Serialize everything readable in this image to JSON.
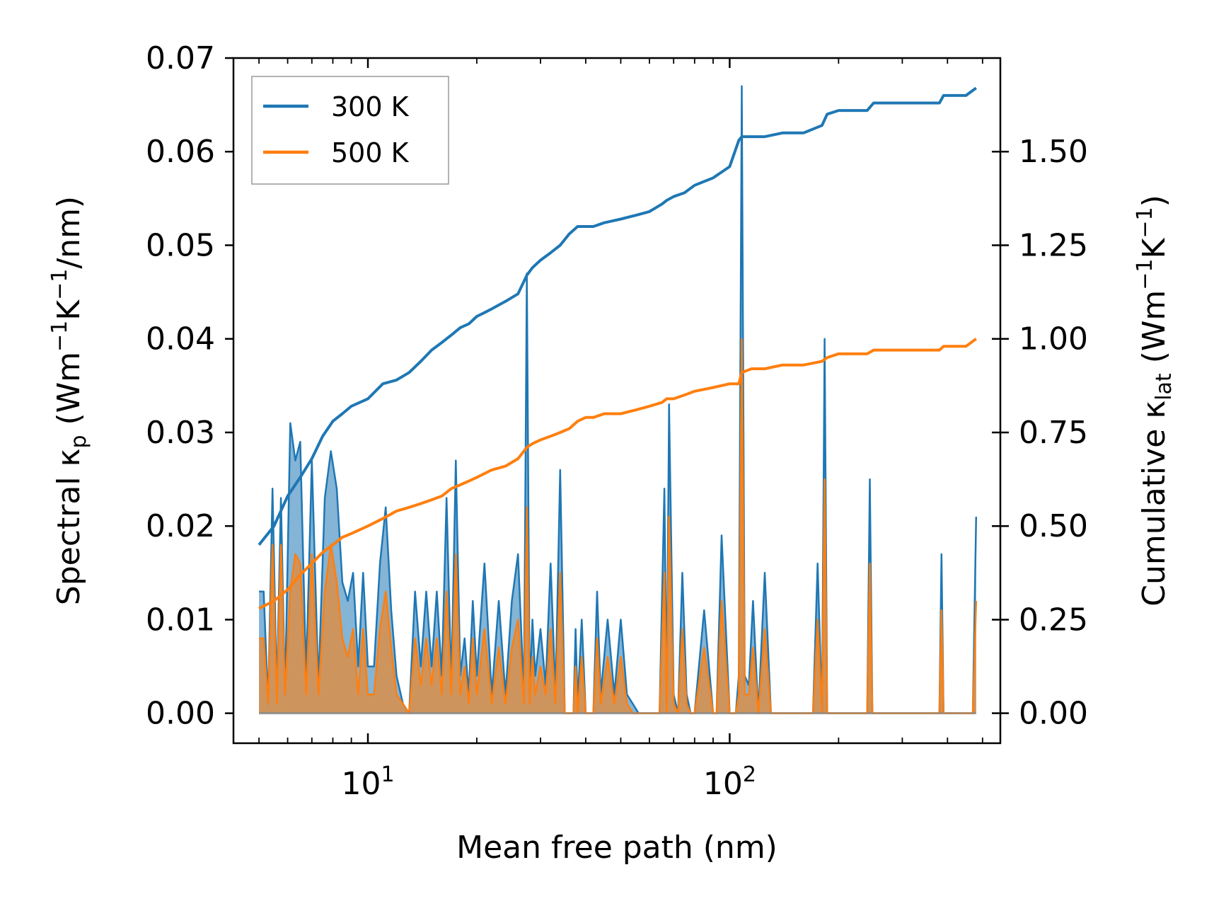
{
  "chart_data": {
    "type": "line",
    "xscale": "log",
    "xlabel": "Mean free path (nm)",
    "xlim": [
      4.25,
      560
    ],
    "x_ticks": [
      {
        "value": 10,
        "base": "10",
        "exp": "1"
      },
      {
        "value": 100,
        "base": "10",
        "exp": "2"
      }
    ],
    "left_axis": {
      "label": {
        "pre": "Spectral κ",
        "sub": "p",
        "mid1": " (Wm",
        "sup1": "−1",
        "mid2": "K",
        "sup2": "−1",
        "post": "/nm)"
      },
      "ylim": [
        -0.0032,
        0.07
      ],
      "ticks": [
        0.0,
        0.01,
        0.02,
        0.03,
        0.04,
        0.05,
        0.06,
        0.07
      ],
      "tick_labels": [
        "0.00",
        "0.01",
        "0.02",
        "0.03",
        "0.04",
        "0.05",
        "0.06",
        "0.07"
      ]
    },
    "right_axis": {
      "label": {
        "pre": "Cumulative κ",
        "sub": "lat",
        "mid1": " (Wm",
        "sup1": "−1",
        "mid2": "K",
        "sup2": "−1",
        "post": ")"
      },
      "ylim": [
        -0.08,
        1.75
      ],
      "ticks": [
        0.0,
        0.25,
        0.5,
        0.75,
        1.0,
        1.25,
        1.5
      ],
      "tick_labels": [
        "0.00",
        "0.25",
        "0.50",
        "0.75",
        "1.00",
        "1.25",
        "1.50"
      ]
    },
    "legend": {
      "position": "top-left",
      "entries": [
        {
          "label": "300 K",
          "color": "#1f77b4"
        },
        {
          "label": "500 K",
          "color": "#ff7f0e"
        }
      ]
    },
    "series": [
      {
        "name": "300 K spectral",
        "axis": "left",
        "kind": "filled-spikes",
        "color": "#1f77b4",
        "x": [
          5.0,
          5.15,
          5.3,
          5.45,
          5.6,
          5.75,
          5.9,
          6.1,
          6.3,
          6.5,
          6.75,
          7.0,
          7.3,
          7.6,
          7.9,
          8.2,
          8.5,
          8.8,
          9.1,
          9.4,
          9.7,
          10.0,
          10.4,
          10.8,
          11.2,
          11.6,
          12.0,
          12.5,
          13.0,
          13.5,
          14.0,
          14.5,
          15.0,
          15.5,
          16.0,
          16.5,
          17.0,
          17.5,
          18.0,
          18.5,
          19.0,
          19.5,
          20.0,
          21.0,
          22.0,
          23.0,
          24.0,
          25.0,
          26.0,
          27.0,
          27.5,
          28.0,
          28.5,
          29.0,
          30.0,
          31.0,
          32.0,
          33.0,
          34.0,
          35.0,
          36.0,
          37.0,
          37.5,
          38.0,
          39.0,
          40.0,
          41.0,
          42.0,
          43.0,
          44.0,
          46.0,
          48.0,
          50.0,
          52.0,
          54.0,
          56.0,
          58.0,
          60.0,
          62.0,
          64.0,
          66.0,
          67.0,
          68.0,
          70.0,
          72.0,
          74.0,
          76.0,
          78.0,
          80.0,
          85.0,
          90.0,
          92.0,
          95.0,
          100.0,
          104.0,
          106.0,
          108.0,
          110.0,
          113.0,
          116.0,
          120.0,
          125.0,
          130.0,
          135.0,
          140.0,
          150.0,
          160.0,
          170.0,
          175.0,
          180.0,
          183.0,
          186.0,
          190.0,
          200.0,
          210.0,
          220.0,
          230.0,
          240.0,
          244.0,
          248.0,
          260.0,
          280.0,
          300.0,
          330.0,
          360.0,
          380.0,
          385.0,
          390.0,
          420.0,
          450.0,
          470.0,
          480.0
        ],
        "y": [
          0.013,
          0.013,
          0.001,
          0.024,
          0.002,
          0.023,
          0.002,
          0.031,
          0.027,
          0.029,
          0.004,
          0.027,
          0.003,
          0.023,
          0.028,
          0.024,
          0.014,
          0.012,
          0.015,
          0.005,
          0.015,
          0.005,
          0.005,
          0.016,
          0.022,
          0.011,
          0.004,
          0.001,
          0.0,
          0.013,
          0.005,
          0.013,
          0.005,
          0.013,
          0.004,
          0.023,
          0.003,
          0.027,
          0.004,
          0.008,
          0.002,
          0.012,
          0.004,
          0.016,
          0.002,
          0.012,
          0.002,
          0.012,
          0.017,
          0.002,
          0.047,
          0.002,
          0.01,
          0.004,
          0.009,
          0.003,
          0.016,
          0.002,
          0.026,
          0.0,
          0.0,
          0.0,
          0.009,
          0.001,
          0.01,
          0.0,
          0.0,
          0.0,
          0.013,
          0.002,
          0.01,
          0.002,
          0.01,
          0.002,
          0.001,
          0.0,
          0.0,
          0.0,
          0.0,
          0.0,
          0.024,
          0.001,
          0.033,
          0.002,
          0.0,
          0.015,
          0.002,
          0.0,
          0.0,
          0.011,
          0.0,
          0.0,
          0.019,
          0.0,
          0.0,
          0.004,
          0.067,
          0.004,
          0.003,
          0.012,
          0.0,
          0.015,
          0.0,
          0.0,
          0.0,
          0.0,
          0.0,
          0.0,
          0.016,
          0.0,
          0.04,
          0.0,
          0.0,
          0.0,
          0.0,
          0.0,
          0.0,
          0.0,
          0.025,
          0.0,
          0.0,
          0.0,
          0.0,
          0.0,
          0.0,
          0.0,
          0.017,
          0.0,
          0.0,
          0.0,
          0.0,
          0.021
        ]
      },
      {
        "name": "500 K spectral",
        "axis": "left",
        "kind": "filled-spikes",
        "color": "#ff7f0e",
        "x": [
          5.0,
          5.15,
          5.3,
          5.45,
          5.6,
          5.75,
          5.9,
          6.1,
          6.3,
          6.5,
          6.75,
          7.0,
          7.3,
          7.6,
          7.9,
          8.2,
          8.5,
          8.8,
          9.1,
          9.4,
          9.7,
          10.0,
          10.4,
          10.8,
          11.2,
          11.6,
          12.0,
          12.5,
          13.0,
          13.5,
          14.0,
          14.5,
          15.0,
          15.5,
          16.0,
          16.5,
          17.0,
          17.5,
          18.0,
          18.5,
          19.0,
          19.5,
          20.0,
          21.0,
          22.0,
          23.0,
          24.0,
          25.0,
          26.0,
          27.0,
          27.5,
          28.0,
          28.5,
          29.0,
          30.0,
          31.0,
          32.0,
          33.0,
          34.0,
          35.0,
          36.0,
          37.0,
          37.5,
          38.0,
          39.0,
          40.0,
          41.0,
          42.0,
          43.0,
          44.0,
          46.0,
          48.0,
          50.0,
          52.0,
          54.0,
          56.0,
          58.0,
          60.0,
          62.0,
          64.0,
          66.0,
          67.0,
          68.0,
          70.0,
          72.0,
          74.0,
          76.0,
          78.0,
          80.0,
          85.0,
          90.0,
          92.0,
          95.0,
          100.0,
          104.0,
          106.0,
          108.0,
          110.0,
          113.0,
          116.0,
          120.0,
          125.0,
          130.0,
          135.0,
          140.0,
          150.0,
          160.0,
          170.0,
          175.0,
          180.0,
          183.0,
          186.0,
          190.0,
          200.0,
          210.0,
          220.0,
          230.0,
          240.0,
          244.0,
          248.0,
          260.0,
          280.0,
          300.0,
          330.0,
          360.0,
          380.0,
          385.0,
          390.0,
          420.0,
          450.0,
          470.0,
          480.0
        ],
        "y": [
          0.008,
          0.008,
          0.001,
          0.018,
          0.001,
          0.018,
          0.002,
          0.013,
          0.017,
          0.016,
          0.002,
          0.017,
          0.002,
          0.013,
          0.018,
          0.014,
          0.008,
          0.006,
          0.009,
          0.002,
          0.009,
          0.002,
          0.002,
          0.009,
          0.013,
          0.007,
          0.002,
          0.001,
          0.0,
          0.008,
          0.003,
          0.008,
          0.003,
          0.008,
          0.002,
          0.013,
          0.002,
          0.017,
          0.002,
          0.005,
          0.001,
          0.008,
          0.002,
          0.009,
          0.001,
          0.007,
          0.001,
          0.007,
          0.01,
          0.001,
          0.022,
          0.001,
          0.006,
          0.002,
          0.005,
          0.002,
          0.009,
          0.001,
          0.015,
          0.0,
          0.0,
          0.0,
          0.005,
          0.0,
          0.006,
          0.0,
          0.0,
          0.0,
          0.008,
          0.001,
          0.006,
          0.001,
          0.006,
          0.001,
          0.0,
          0.0,
          0.0,
          0.0,
          0.0,
          0.0,
          0.015,
          0.0,
          0.021,
          0.001,
          0.0,
          0.009,
          0.001,
          0.0,
          0.0,
          0.007,
          0.0,
          0.0,
          0.012,
          0.0,
          0.0,
          0.002,
          0.04,
          0.002,
          0.002,
          0.007,
          0.0,
          0.009,
          0.0,
          0.0,
          0.0,
          0.0,
          0.0,
          0.0,
          0.01,
          0.0,
          0.025,
          0.0,
          0.0,
          0.0,
          0.0,
          0.0,
          0.0,
          0.0,
          0.016,
          0.0,
          0.0,
          0.0,
          0.0,
          0.0,
          0.0,
          0.0,
          0.011,
          0.0,
          0.0,
          0.0,
          0.0,
          0.012
        ]
      },
      {
        "name": "300 K",
        "axis": "right",
        "kind": "line",
        "color": "#1f77b4",
        "x": [
          5.0,
          5.5,
          6.0,
          6.5,
          7.0,
          7.5,
          8.0,
          8.5,
          9.0,
          10.0,
          11.0,
          12.0,
          13.0,
          14.0,
          15.0,
          16.0,
          17.0,
          18.0,
          19.0,
          20.0,
          21.0,
          22.0,
          24.0,
          26.0,
          27.5,
          28.5,
          30.0,
          32.0,
          34.0,
          36.0,
          38.0,
          40.0,
          42.0,
          45.0,
          50.0,
          55.0,
          60.0,
          65.0,
          67.0,
          70.0,
          75.0,
          80.0,
          90.0,
          100.0,
          106.0,
          108.0,
          115.0,
          125.0,
          140.0,
          160.0,
          180.0,
          186.0,
          200.0,
          240.0,
          250.0,
          300.0,
          380.0,
          390.0,
          450.0,
          480.0
        ],
        "y": [
          0.45,
          0.5,
          0.58,
          0.63,
          0.68,
          0.74,
          0.78,
          0.8,
          0.82,
          0.84,
          0.88,
          0.89,
          0.91,
          0.94,
          0.97,
          0.99,
          1.01,
          1.03,
          1.04,
          1.06,
          1.07,
          1.08,
          1.1,
          1.12,
          1.17,
          1.19,
          1.21,
          1.23,
          1.25,
          1.28,
          1.3,
          1.3,
          1.3,
          1.31,
          1.32,
          1.33,
          1.34,
          1.36,
          1.37,
          1.38,
          1.39,
          1.41,
          1.43,
          1.46,
          1.53,
          1.54,
          1.54,
          1.54,
          1.55,
          1.55,
          1.57,
          1.6,
          1.61,
          1.61,
          1.63,
          1.63,
          1.63,
          1.65,
          1.65,
          1.67
        ]
      },
      {
        "name": "500 K",
        "axis": "right",
        "kind": "line",
        "color": "#ff7f0e",
        "x": [
          5.0,
          5.5,
          6.0,
          6.5,
          7.0,
          7.5,
          8.0,
          8.5,
          9.0,
          10.0,
          11.0,
          12.0,
          13.0,
          14.0,
          15.0,
          16.0,
          17.0,
          18.0,
          19.0,
          20.0,
          21.0,
          22.0,
          24.0,
          26.0,
          27.5,
          28.5,
          30.0,
          32.0,
          34.0,
          36.0,
          38.0,
          40.0,
          42.0,
          45.0,
          50.0,
          55.0,
          60.0,
          65.0,
          67.0,
          70.0,
          75.0,
          80.0,
          90.0,
          100.0,
          106.0,
          108.0,
          115.0,
          125.0,
          140.0,
          160.0,
          180.0,
          186.0,
          200.0,
          240.0,
          250.0,
          300.0,
          380.0,
          390.0,
          450.0,
          480.0
        ],
        "y": [
          0.28,
          0.3,
          0.33,
          0.37,
          0.4,
          0.43,
          0.45,
          0.47,
          0.48,
          0.5,
          0.52,
          0.54,
          0.55,
          0.56,
          0.57,
          0.58,
          0.6,
          0.61,
          0.62,
          0.63,
          0.64,
          0.65,
          0.66,
          0.68,
          0.71,
          0.72,
          0.73,
          0.74,
          0.75,
          0.76,
          0.78,
          0.79,
          0.79,
          0.8,
          0.8,
          0.81,
          0.82,
          0.83,
          0.84,
          0.84,
          0.85,
          0.86,
          0.87,
          0.88,
          0.88,
          0.91,
          0.92,
          0.92,
          0.93,
          0.93,
          0.94,
          0.95,
          0.96,
          0.96,
          0.97,
          0.97,
          0.97,
          0.98,
          0.98,
          1.0
        ]
      }
    ]
  }
}
